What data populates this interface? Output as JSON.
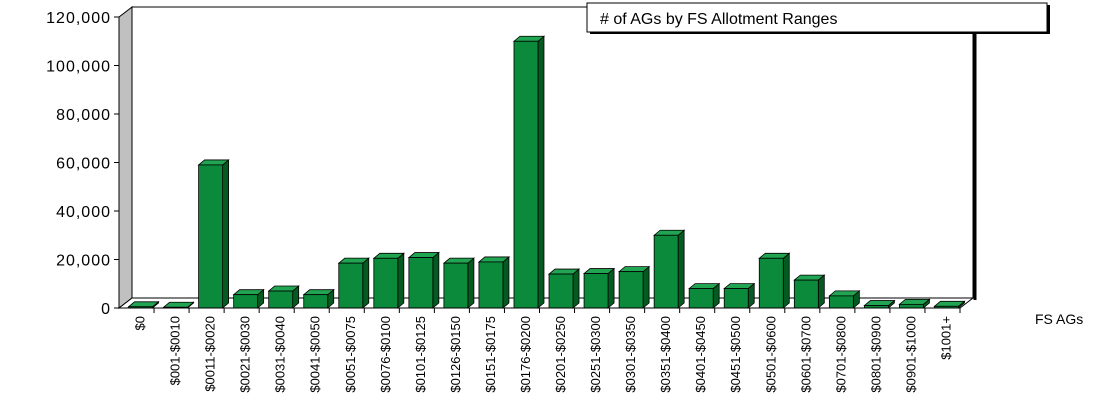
{
  "chart_data": {
    "type": "bar",
    "title": "# of AGs by FS Allotment Ranges",
    "series": [
      {
        "name": "FS AGs",
        "values": [
          500,
          300,
          59000,
          5500,
          7000,
          5500,
          18500,
          20500,
          20800,
          18500,
          19000,
          110000,
          14000,
          14200,
          15000,
          30000,
          8000,
          8000,
          20500,
          11500,
          5000,
          1000,
          1500,
          700
        ]
      }
    ],
    "categories": [
      "$0",
      "$001-$0010",
      "$0011-$0020",
      "$0021-$0030",
      "$0031-$0040",
      "$0041-$0050",
      "$0051-$0075",
      "$0076-$0100",
      "$0101-$0125",
      "$0126-$0150",
      "$0151-$0175",
      "$0176-$0200",
      "$0201-$0250",
      "$0251-$0300",
      "$0301-$0350",
      "$0351-$0400",
      "$0401-$0450",
      "$0451-$0500",
      "$0501-$0600",
      "$0601-$0700",
      "$0701-$0800",
      "$0801-$0900",
      "$0901-$1000",
      "$1001+"
    ],
    "yticks": [
      "0",
      "20,000",
      "40,000",
      "60,000",
      "80,000",
      "100,000",
      "120,000"
    ],
    "ylim": [
      0,
      120000
    ],
    "colors": {
      "bar_front": "#0a8a3a",
      "bar_side": "#055a22",
      "bar_top": "#22a552",
      "wall": "#c0c0c0"
    },
    "legend_position": "top-right"
  }
}
